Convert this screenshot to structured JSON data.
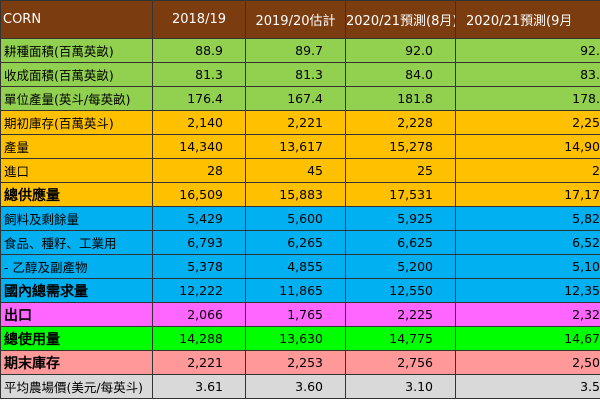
{
  "table": {
    "header": [
      "CORN",
      "2018/19",
      "2019/20估計",
      "2020/21預測(8月)",
      "2020/21預測(9月"
    ],
    "rows": [
      [
        "耕種面積(百萬英畝)",
        "88.9",
        "89.7",
        "92.0",
        "92."
      ],
      [
        "收成面積(百萬英畝)",
        "81.3",
        "81.3",
        "84.0",
        "83."
      ],
      [
        "單位產量(英斗/每英畝)",
        "176.4",
        "167.4",
        "181.8",
        "178."
      ],
      [
        "期初庫存(百萬英斗)",
        "2,140",
        "2,221",
        "2,228",
        "2,25"
      ],
      [
        "產量",
        "14,340",
        "13,617",
        "15,278",
        "14,90"
      ],
      [
        "進口",
        "28",
        "45",
        "25",
        "2"
      ],
      [
        "總供應量",
        "16,509",
        "15,883",
        "17,531",
        "17,17"
      ],
      [
        "飼料及剩餘量",
        "5,429",
        "5,600",
        "5,925",
        "5,82"
      ],
      [
        "食品、種籽、工業用",
        "6,793",
        "6,265",
        "6,625",
        "6,52"
      ],
      [
        "- 乙醇及副產物",
        "5,378",
        "4,855",
        "5,200",
        "5,10"
      ],
      [
        "國內總需求量",
        "12,222",
        "11,865",
        "12,550",
        "12,35"
      ],
      [
        "出口",
        "2,066",
        "1,765",
        "2,225",
        "2,32"
      ],
      [
        "總使用量",
        "14,288",
        "13,630",
        "14,775",
        "14,67"
      ],
      [
        "期末庫存",
        "2,221",
        "2,253",
        "2,756",
        "2,50"
      ],
      [
        "平均農場價(美元/每英斗)",
        "3.61",
        "3.60",
        "3.10",
        "3.5"
      ]
    ]
  }
}
